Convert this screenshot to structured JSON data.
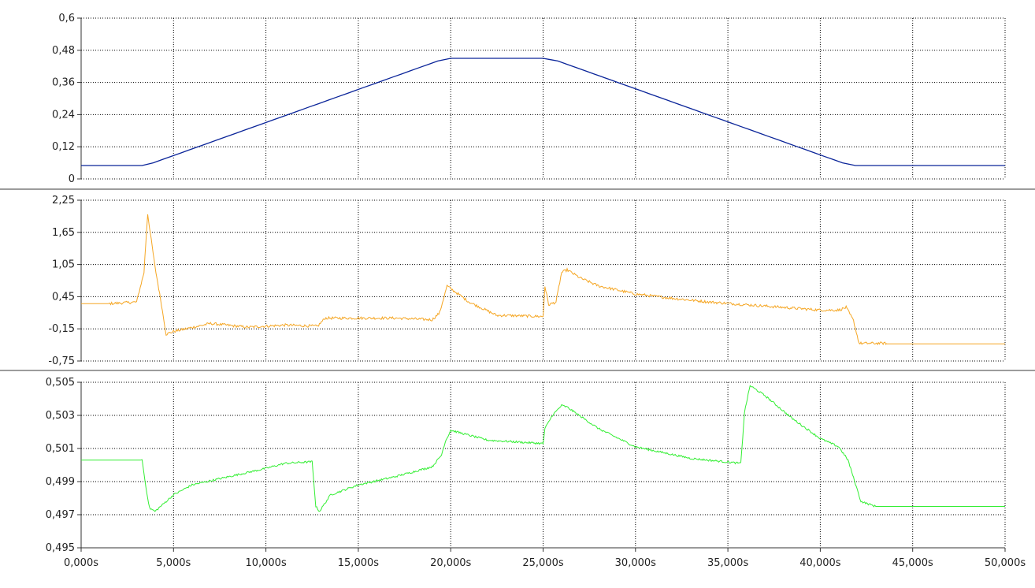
{
  "x_axis": {
    "ticks": [
      "0,000s",
      "5,000s",
      "10,000s",
      "15,000s",
      "20,000s",
      "25,000s",
      "30,000s",
      "35,000s",
      "40,000s",
      "45,000s",
      "50,000s"
    ]
  },
  "chart_data": [
    {
      "type": "line",
      "title": "",
      "xlabel": "",
      "ylabel": "",
      "xlim": [
        0,
        50
      ],
      "ylim": [
        0,
        0.6
      ],
      "grid": true,
      "yticks": [
        "0",
        "0,12",
        "0,24",
        "0,36",
        "0,48",
        "0,6"
      ],
      "series": [
        {
          "color": "#0a2499",
          "x": [
            0,
            3.3,
            3.9,
            19.3,
            20.0,
            25.0,
            25.8,
            41.2,
            41.9,
            50
          ],
          "y": [
            0.05,
            0.05,
            0.06,
            0.44,
            0.45,
            0.45,
            0.44,
            0.06,
            0.05,
            0.05
          ]
        }
      ]
    },
    {
      "type": "line",
      "title": "",
      "xlabel": "",
      "ylabel": "",
      "xlim": [
        0,
        50
      ],
      "ylim": [
        -0.75,
        2.25
      ],
      "grid": true,
      "yticks": [
        "-0,75",
        "-0,15",
        "0,45",
        "1,05",
        "1,65",
        "2,25"
      ],
      "series": [
        {
          "color": "#f5a623",
          "x": [
            0,
            1.5,
            3.0,
            3.4,
            3.6,
            4.0,
            4.3,
            4.6,
            5.0,
            7.0,
            9.0,
            11.0,
            12.8,
            13.2,
            15.0,
            17.0,
            19.0,
            19.4,
            19.8,
            20.2,
            21.0,
            22.5,
            23.0,
            25.0,
            25.1,
            25.3,
            25.7,
            26.0,
            26.3,
            27.0,
            28.0,
            30.0,
            32.0,
            34.0,
            36.0,
            38.0,
            40.0,
            41.0,
            41.4,
            41.8,
            42.1,
            43.6
          ],
          "y": [
            0.32,
            0.32,
            0.35,
            0.9,
            2.0,
            1.0,
            0.4,
            -0.25,
            -0.2,
            -0.05,
            -0.12,
            -0.08,
            -0.1,
            0.05,
            0.05,
            0.05,
            0.02,
            0.15,
            0.65,
            0.55,
            0.35,
            0.1,
            0.1,
            0.08,
            0.65,
            0.3,
            0.35,
            0.9,
            0.95,
            0.8,
            0.65,
            0.5,
            0.42,
            0.35,
            0.3,
            0.25,
            0.2,
            0.2,
            0.25,
            0.0,
            -0.42,
            -0.42
          ]
        },
        {
          "color": "#f5a623",
          "x": [
            43.6,
            50
          ],
          "y": [
            -0.43,
            -0.43
          ]
        }
      ]
    },
    {
      "type": "line",
      "title": "",
      "xlabel": "",
      "ylabel": "",
      "xlim": [
        0,
        50
      ],
      "ylim": [
        0.495,
        0.505
      ],
      "grid": true,
      "yticks": [
        "0,495",
        "0,497",
        "0,499",
        "0,501",
        "0,503",
        "0,505"
      ],
      "series": [
        {
          "color": "#33ee33",
          "x": [
            0,
            3.3,
            3.5,
            3.7,
            4.0,
            5.0,
            6.0,
            8.0,
            10.0,
            11.0,
            12.5,
            12.7,
            12.9,
            13.5,
            15.0,
            17.0,
            19.0,
            19.5,
            19.7,
            20.0,
            22.0,
            25.0,
            25.1,
            25.5,
            26.0,
            26.3,
            28.0,
            30.0,
            33.0,
            35.7,
            35.9,
            36.2,
            37.0,
            38.5,
            40.0,
            41.0,
            41.5,
            42.2,
            43.0,
            50.0
          ],
          "y": [
            0.5003,
            0.5003,
            0.4987,
            0.4974,
            0.4972,
            0.4982,
            0.4988,
            0.4993,
            0.4998,
            0.5001,
            0.5002,
            0.4975,
            0.4972,
            0.4982,
            0.4988,
            0.4993,
            0.4999,
            0.5006,
            0.5014,
            0.5021,
            0.5015,
            0.5013,
            0.5022,
            0.503,
            0.5036,
            0.5035,
            0.5022,
            0.5011,
            0.5004,
            0.5001,
            0.5032,
            0.5048,
            0.5042,
            0.5028,
            0.5016,
            0.5011,
            0.5003,
            0.4978,
            0.4975,
            0.4975
          ]
        }
      ]
    }
  ]
}
